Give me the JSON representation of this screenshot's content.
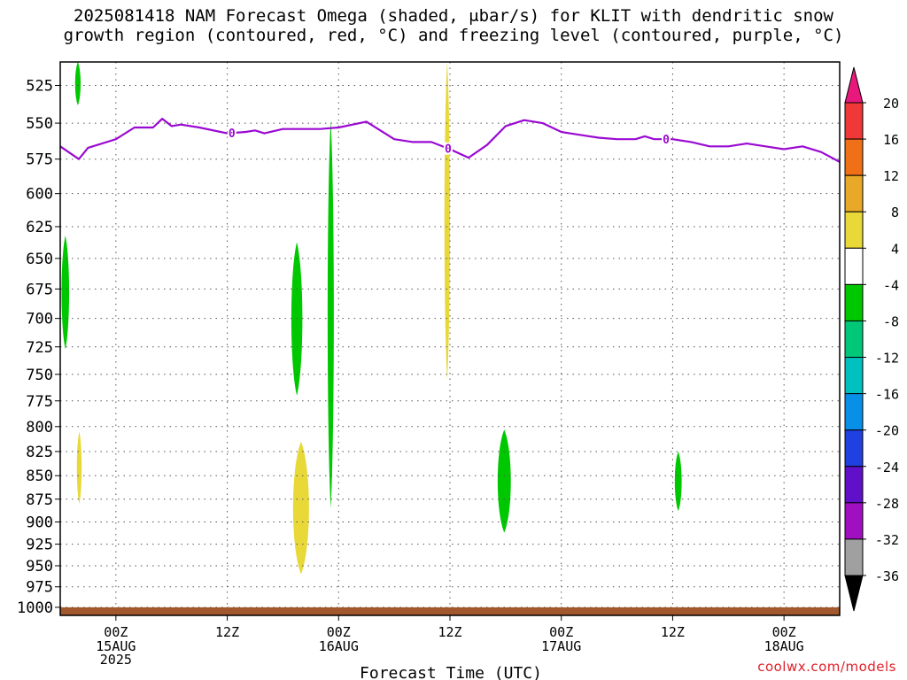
{
  "title_line1": "2025081418 NAM Forecast Omega (shaded, μbar/s) for KLIT with dendritic snow",
  "title_line2": "growth region (contoured, red, °C) and freezing level (contoured, purple, °C)",
  "watermark": "coolwx.com/models",
  "chart_data": {
    "type": "heatmap",
    "title": "2025081418 NAM Forecast Omega (shaded, μbar/s) for KLIT with dendritic snow growth region (contoured, red, °C) and freezing level (contoured, purple, °C)",
    "xlabel": "Forecast Time (UTC)",
    "ylabel": "",
    "x_units": "hours since 2025-08-14 18Z",
    "xlim": [
      0,
      84
    ],
    "ylim": [
      1010,
      510
    ],
    "y_scale": "log",
    "grid": true,
    "yticks": [
      525,
      550,
      575,
      600,
      625,
      650,
      675,
      700,
      725,
      750,
      775,
      800,
      825,
      850,
      875,
      900,
      925,
      950,
      975,
      1000
    ],
    "xticks": [
      {
        "x": 6,
        "label": "00Z",
        "sub": [
          "15AUG",
          "2025"
        ]
      },
      {
        "x": 18,
        "label": "12Z",
        "sub": []
      },
      {
        "x": 30,
        "label": "00Z",
        "sub": [
          "16AUG"
        ]
      },
      {
        "x": 42,
        "label": "12Z",
        "sub": []
      },
      {
        "x": 54,
        "label": "00Z",
        "sub": [
          "17AUG"
        ]
      },
      {
        "x": 66,
        "label": "12Z",
        "sub": []
      },
      {
        "x": 78,
        "label": "00Z",
        "sub": [
          "18AUG"
        ]
      }
    ],
    "colorbar": {
      "labels": [
        "20",
        "16",
        "12",
        "8",
        "4",
        "-4",
        "-8",
        "-12",
        "-16",
        "-20",
        "-24",
        "-28",
        "-32",
        "-36"
      ],
      "colors_top_to_bottom": [
        "#e8187c",
        "#f03838",
        "#f07018",
        "#e8a828",
        "#e8d838",
        "#ffffff",
        "#00c800",
        "#00c878",
        "#00c0c0",
        "#0890e8",
        "#2040e0",
        "#6010c8",
        "#a010c0",
        "#a0a0a0",
        "#000000"
      ]
    },
    "freezing_level": {
      "label": "0",
      "color": "#9a0ad2",
      "x": [
        0,
        2,
        3,
        6,
        8,
        10,
        11,
        12,
        13,
        15,
        18,
        20,
        21,
        22,
        24,
        28,
        30,
        33,
        36,
        38,
        40,
        42,
        44,
        46,
        48,
        50,
        52,
        54,
        56,
        58,
        60,
        62,
        63,
        64,
        66,
        68,
        70,
        72,
        74,
        76,
        78,
        80,
        82,
        84
      ],
      "y": [
        566,
        575,
        567,
        561,
        553,
        553,
        547,
        552,
        551,
        553,
        557,
        556,
        555,
        557,
        554,
        554,
        553,
        549,
        561,
        563,
        563,
        568,
        574,
        565,
        552,
        548,
        550,
        556,
        558,
        560,
        561,
        561,
        559,
        561,
        561,
        563,
        566,
        566,
        564,
        566,
        568,
        566,
        570,
        577
      ]
    },
    "shaded_regions": [
      {
        "omega_range": [
          4,
          8
        ],
        "color": "#e8d838",
        "x": [
          41.4,
          42.0
        ],
        "pressure": [
          510,
          755
        ]
      },
      {
        "omega_range": [
          4,
          8
        ],
        "color": "#e8d838",
        "x": [
          1.8,
          2.3
        ],
        "pressure": [
          805,
          880
        ]
      },
      {
        "omega_range": [
          4,
          8
        ],
        "color": "#e8d838",
        "x": [
          24.9,
          27.0
        ],
        "pressure": [
          815,
          960
        ]
      },
      {
        "omega_range": [
          -8,
          -4
        ],
        "color": "#00c800",
        "x": [
          1.6,
          2.2
        ],
        "pressure": [
          510,
          538
        ]
      },
      {
        "omega_range": [
          -8,
          -4
        ],
        "color": "#00c800",
        "x": [
          0.1,
          1.0
        ],
        "pressure": [
          632,
          727
        ]
      },
      {
        "omega_range": [
          -8,
          -4
        ],
        "color": "#00c800",
        "x": [
          24.8,
          26.2
        ],
        "pressure": [
          637,
          770
        ]
      },
      {
        "omega_range": [
          -8,
          -4
        ],
        "color": "#00c800",
        "x": [
          28.8,
          29.5
        ],
        "pressure": [
          548,
          885
        ]
      },
      {
        "omega_range": [
          -8,
          -4
        ],
        "color": "#00c800",
        "x": [
          47.0,
          48.7
        ],
        "pressure": [
          803,
          912
        ]
      },
      {
        "omega_range": [
          -8,
          -4
        ],
        "color": "#00c800",
        "x": [
          66.2,
          67.0
        ],
        "pressure": [
          825,
          888
        ]
      }
    ],
    "terrain": {
      "color": "#a0582c",
      "pressure_top": 1000
    }
  }
}
